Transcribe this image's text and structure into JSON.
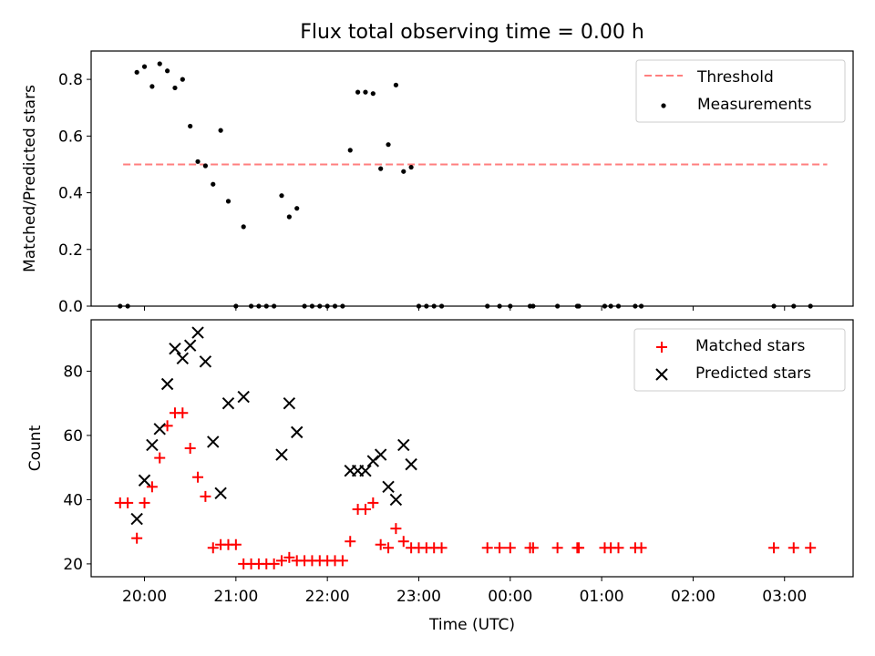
{
  "chart_data": [
    {
      "type": "scatter",
      "title": "Flux total observing time = 0.00 h",
      "xlabel": "",
      "ylabel": "Matched/Predicted stars",
      "xlim": [
        "19:25",
        "03:45"
      ],
      "ylim": [
        0,
        0.9
      ],
      "yticks": [
        "0.0",
        "0.2",
        "0.4",
        "0.6",
        "0.8"
      ],
      "grid": false,
      "legend_position": "top-right",
      "series": [
        {
          "name": "Threshold",
          "style": "dashed-line",
          "color": "#ff7f7f",
          "x": [
            "19:46",
            "03:28"
          ],
          "y": [
            0.5,
            0.5
          ]
        },
        {
          "name": "Measurements",
          "style": "dot",
          "color": "#000000",
          "x": [
            "19:44",
            "19:49",
            "19:55",
            "20:00",
            "20:05",
            "20:10",
            "20:15",
            "20:20",
            "20:25",
            "20:30",
            "20:35",
            "20:40",
            "20:45",
            "20:50",
            "20:55",
            "21:00",
            "21:05",
            "21:10",
            "21:15",
            "21:20",
            "21:25",
            "21:30",
            "21:35",
            "21:40",
            "21:45",
            "21:50",
            "21:55",
            "22:00",
            "22:05",
            "22:10",
            "22:15",
            "22:20",
            "22:25",
            "22:30",
            "22:35",
            "22:40",
            "22:45",
            "22:50",
            "22:55",
            "23:00",
            "23:05",
            "23:10",
            "23:15",
            "23:45",
            "23:53",
            "24:00",
            "24:13",
            "24:15",
            "24:31",
            "24:44",
            "24:45",
            "25:02",
            "25:06",
            "25:11",
            "25:22",
            "25:26",
            "26:53",
            "27:06",
            "27:17"
          ],
          "y": [
            0,
            0,
            0.825,
            0.845,
            0.775,
            0.855,
            0.83,
            0.77,
            0.8,
            0.635,
            0.51,
            0.495,
            0.43,
            0.62,
            0.37,
            0,
            0.28,
            0,
            0,
            0,
            0,
            0.39,
            0.315,
            0.345,
            0,
            0,
            0,
            0,
            0,
            0,
            0.55,
            0.755,
            0.755,
            0.75,
            0.485,
            0.57,
            0.78,
            0.475,
            0.49,
            0,
            0,
            0,
            0,
            0,
            0,
            0,
            0,
            0,
            0,
            0,
            0,
            0,
            0,
            0,
            0,
            0,
            0,
            0,
            0
          ]
        }
      ]
    },
    {
      "type": "scatter",
      "title": "",
      "xlabel": "Time (UTC)",
      "ylabel": "Count",
      "xlim": [
        "19:25",
        "03:45"
      ],
      "ylim": [
        16,
        96
      ],
      "yticks": [
        "20",
        "40",
        "60",
        "80"
      ],
      "xticks": [
        "20:00",
        "21:00",
        "22:00",
        "23:00",
        "00:00",
        "01:00",
        "02:00",
        "03:00"
      ],
      "grid": false,
      "legend_position": "top-right",
      "series": [
        {
          "name": "Matched stars",
          "style": "plus",
          "color": "#ff0000",
          "x": [
            "19:44",
            "19:49",
            "19:55",
            "20:00",
            "20:05",
            "20:10",
            "20:15",
            "20:20",
            "20:25",
            "20:30",
            "20:35",
            "20:40",
            "20:45",
            "20:50",
            "20:55",
            "21:00",
            "21:05",
            "21:10",
            "21:15",
            "21:20",
            "21:25",
            "21:30",
            "21:35",
            "21:40",
            "21:45",
            "21:50",
            "21:55",
            "22:00",
            "22:05",
            "22:10",
            "22:15",
            "22:20",
            "22:25",
            "22:30",
            "22:35",
            "22:40",
            "22:45",
            "22:50",
            "22:55",
            "23:00",
            "23:05",
            "23:10",
            "23:15",
            "23:45",
            "23:53",
            "24:00",
            "24:13",
            "24:15",
            "24:31",
            "24:44",
            "24:45",
            "25:02",
            "25:06",
            "25:11",
            "25:22",
            "25:26",
            "26:53",
            "27:06",
            "27:17"
          ],
          "y": [
            39,
            39,
            28,
            39,
            44,
            53,
            63,
            67,
            67,
            56,
            47,
            41,
            25,
            26,
            26,
            26,
            20,
            20,
            20,
            20,
            20,
            21,
            22,
            21,
            21,
            21,
            21,
            21,
            21,
            21,
            27,
            37,
            37,
            39,
            26,
            25,
            31,
            27,
            25,
            25,
            25,
            25,
            25,
            25,
            25,
            25,
            25,
            25,
            25,
            25,
            25,
            25,
            25,
            25,
            25,
            25,
            25,
            25,
            25
          ]
        },
        {
          "name": "Predicted stars",
          "style": "x",
          "color": "#000000",
          "x": [
            "19:55",
            "20:00",
            "20:05",
            "20:10",
            "20:15",
            "20:20",
            "20:25",
            "20:30",
            "20:35",
            "20:40",
            "20:45",
            "20:50",
            "20:55",
            "21:05",
            "21:30",
            "21:35",
            "21:40",
            "22:15",
            "22:20",
            "22:25",
            "22:30",
            "22:35",
            "22:40",
            "22:45",
            "22:50",
            "22:55"
          ],
          "y": [
            34,
            46,
            57,
            62,
            76,
            87,
            84,
            88,
            92,
            83,
            58,
            42,
            70,
            72,
            54,
            70,
            61,
            49,
            49,
            49,
            52,
            54,
            44,
            40,
            57,
            51
          ]
        }
      ]
    }
  ]
}
